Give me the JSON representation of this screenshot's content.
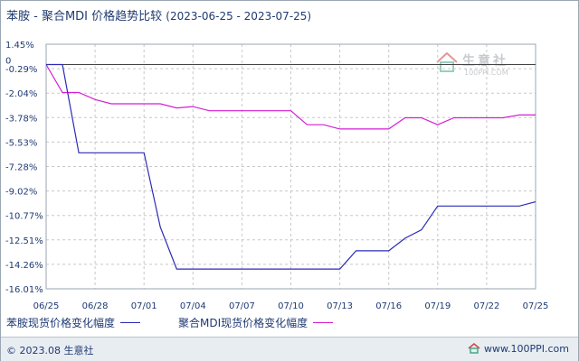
{
  "title": {
    "main": "苯胺 - 聚合MDI 价格趋势比较",
    "range": "(2023-06-25 - 2023-07-25)"
  },
  "watermark": {
    "brand": "生意社",
    "url": "100PPI.COM"
  },
  "footer": {
    "copyright": "© 2023.08 生意社",
    "url": "www.100PPI.com"
  },
  "colors": {
    "series1": "#2b2bb5",
    "series2": "#d41fd4",
    "zero_line": "#444444",
    "grid": "#c8c8c8"
  },
  "chart_data": {
    "type": "line",
    "x_ticks": [
      "06/25",
      "06/28",
      "07/01",
      "07/04",
      "07/07",
      "07/10",
      "07/13",
      "07/16",
      "07/19",
      "07/22",
      "07/25"
    ],
    "y_ticks": [
      "1.45%",
      "-0.29%",
      "-2.04%",
      "-3.78%",
      "-5.53%",
      "-7.28%",
      "-9.02%",
      "-10.77%",
      "-12.51%",
      "-14.26%",
      "-16.01%"
    ],
    "zero_label": "0",
    "ylim": [
      -16.01,
      1.45
    ],
    "grid": true,
    "legend_position": "bottom",
    "x": [
      "06/25",
      "06/26",
      "06/27",
      "06/28",
      "06/29",
      "06/30",
      "07/01",
      "07/02",
      "07/03",
      "07/04",
      "07/05",
      "07/06",
      "07/07",
      "07/08",
      "07/09",
      "07/10",
      "07/11",
      "07/12",
      "07/13",
      "07/14",
      "07/15",
      "07/16",
      "07/17",
      "07/18",
      "07/19",
      "07/20",
      "07/21",
      "07/22",
      "07/23",
      "07/24",
      "07/25"
    ],
    "series": [
      {
        "name": "苯胺现货价格变化幅度",
        "color": "#2b2bb5",
        "values": [
          0,
          0,
          -6.3,
          -6.3,
          -6.3,
          -6.3,
          -6.3,
          -11.6,
          -14.6,
          -14.6,
          -14.6,
          -14.6,
          -14.6,
          -14.6,
          -14.6,
          -14.6,
          -14.6,
          -14.6,
          -14.6,
          -13.3,
          -13.3,
          -13.3,
          -12.4,
          -11.8,
          -10.1,
          -10.1,
          -10.1,
          -10.1,
          -10.1,
          -10.1,
          -9.8
        ]
      },
      {
        "name": "聚合MDI现货价格变化幅度",
        "color": "#d41fd4",
        "values": [
          0,
          -2.0,
          -2.0,
          -2.5,
          -2.8,
          -2.8,
          -2.8,
          -2.8,
          -3.1,
          -3.0,
          -3.3,
          -3.3,
          -3.3,
          -3.3,
          -3.3,
          -3.3,
          -4.3,
          -4.3,
          -4.6,
          -4.6,
          -4.6,
          -4.6,
          -3.8,
          -3.8,
          -4.3,
          -3.8,
          -3.8,
          -3.8,
          -3.8,
          -3.6,
          -3.6
        ]
      }
    ]
  }
}
